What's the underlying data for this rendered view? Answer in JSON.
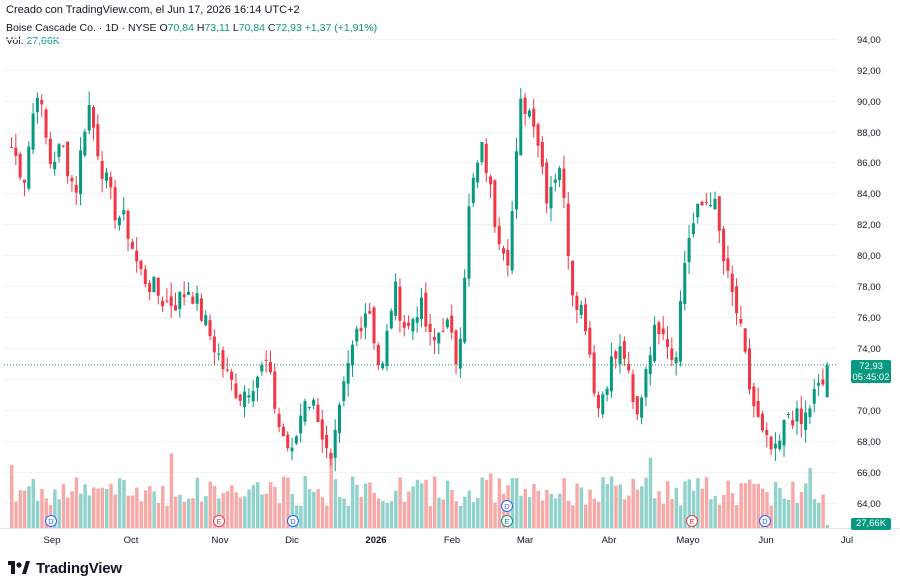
{
  "created_by": "Creado con TradingView.com, el Jun 17, 2026 16:14 UTC+2",
  "legend": {
    "symbol": "Boise Cascade Co. · 1D · NYSE",
    "open_label": "O",
    "open": "70,84",
    "high_label": "H",
    "high": "73,11",
    "low_label": "L",
    "low": "70,84",
    "close_label": "C",
    "close": "72,93",
    "change": "+1,37 (+1,91%)",
    "vol_label": "Vol.",
    "vol": "27,66K"
  },
  "price_badge": {
    "price": "72,93",
    "countdown": "05:45:02"
  },
  "volume_badge": "27,66K",
  "brand": "TradingView",
  "colors": {
    "up": "#089981",
    "down": "#f23645",
    "vol_up": "#92d2cc",
    "vol_down": "#f7a9a7",
    "grid": "#f0f3fa",
    "text": "#131722"
  },
  "chart_data": {
    "type": "candlestick",
    "y_axis": {
      "ticks": [
        "64,00",
        "66,00",
        "68,00",
        "70,00",
        "72,00",
        "74,00",
        "76,00",
        "78,00",
        "80,00",
        "82,00",
        "84,00",
        "86,00",
        "88,00",
        "90,00",
        "92,00",
        "94,00"
      ],
      "ylim": [
        62.4,
        95.2
      ]
    },
    "x_axis": {
      "ticks": [
        "Sep",
        "Oct",
        "Nov",
        "Dic",
        "2026",
        "Feb",
        "Mar",
        "Abr",
        "Mayo",
        "Jun",
        "Jul"
      ]
    },
    "anchors": [
      87,
      85,
      91,
      86,
      87,
      84,
      90,
      86,
      83,
      82,
      79,
      78,
      77,
      77,
      78,
      76,
      74,
      72,
      71,
      72,
      73,
      69,
      67,
      71,
      70,
      66,
      71,
      75,
      77,
      72,
      78,
      75,
      77,
      74,
      76,
      73,
      84,
      87,
      82,
      80,
      90,
      89,
      84,
      86,
      78,
      76,
      70,
      73,
      74,
      69,
      74,
      76,
      73,
      81,
      83,
      84,
      79,
      76,
      71,
      68,
      67,
      70,
      69,
      71,
      72
    ],
    "bars": 190,
    "events": [
      {
        "label": "D",
        "kind": "dividend",
        "bar": 14
      },
      {
        "label": "E",
        "kind": "earnings",
        "bar": 64
      },
      {
        "label": "D",
        "kind": "dividend",
        "bar": 85
      },
      {
        "label": "D",
        "kind": "dividend",
        "bar": 147
      },
      {
        "label": "E",
        "kind": "earnings",
        "bar": 147
      },
      {
        "label": "E",
        "kind": "earnings",
        "bar": 202
      },
      {
        "label": "D",
        "kind": "dividend",
        "bar": 225
      }
    ]
  }
}
